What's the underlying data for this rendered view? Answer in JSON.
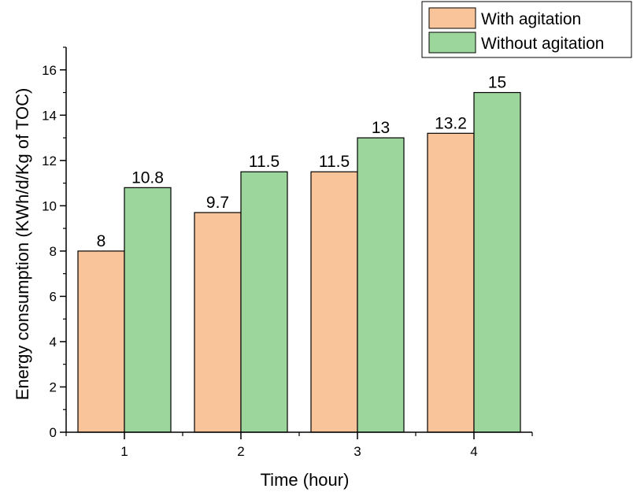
{
  "chart_data": {
    "type": "bar",
    "xlabel": "Time (hour)",
    "ylabel": "Energy consumption (KWh/d/Kg of TOC)",
    "categories": [
      "1",
      "2",
      "3",
      "4"
    ],
    "ylim": [
      0,
      17
    ],
    "yticks": [
      0,
      2,
      4,
      6,
      8,
      10,
      12,
      14,
      16
    ],
    "yminor_step": 1,
    "grid": false,
    "legend_position": "top-right",
    "series": [
      {
        "name": "With agitation",
        "color": "#f9c49a",
        "values": [
          8,
          9.7,
          11.5,
          13.2
        ],
        "labels": [
          "8",
          "9.7",
          "11.5",
          "13.2"
        ]
      },
      {
        "name": "Without agitation",
        "color": "#9dd69d",
        "values": [
          10.8,
          11.5,
          13,
          15
        ],
        "labels": [
          "10.8",
          "11.5",
          "13",
          "15"
        ]
      }
    ]
  }
}
